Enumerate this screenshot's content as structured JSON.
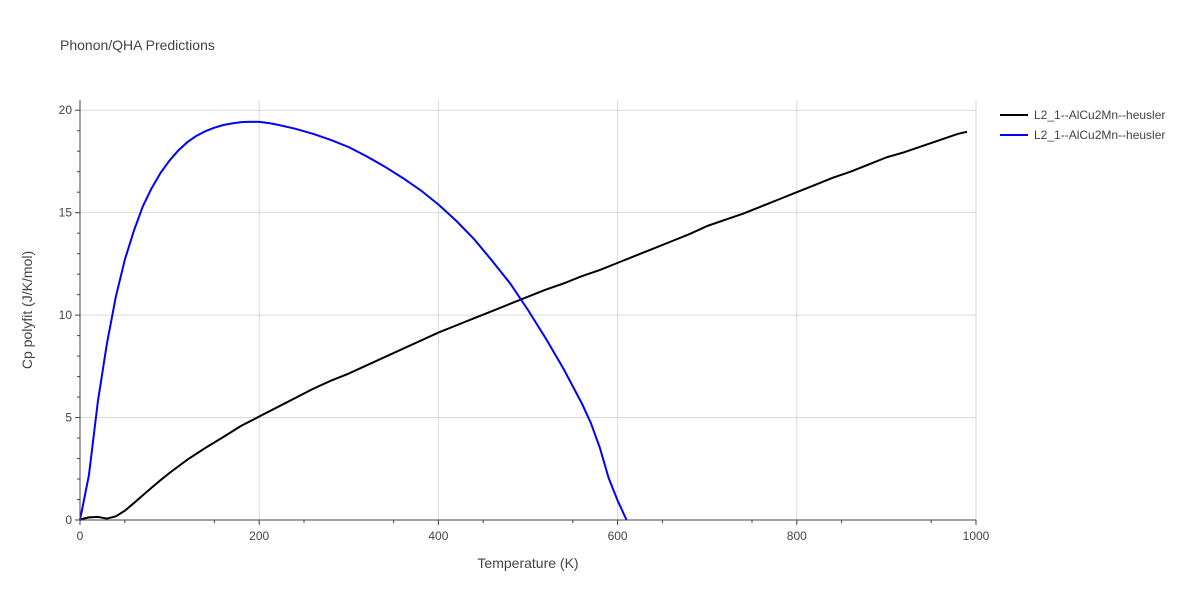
{
  "chart_data": {
    "type": "line",
    "title": "Phonon/QHA Predictions",
    "xlabel": "Temperature (K)",
    "ylabel": "Cp polyfit (J/K/mol)",
    "xlim": [
      0,
      1000
    ],
    "ylim": [
      0,
      20.5
    ],
    "xticks": [
      0,
      200,
      400,
      600,
      800,
      1000
    ],
    "yticks": [
      0,
      5,
      10,
      15,
      20
    ],
    "xtick_labels": [
      "0",
      "200",
      "400",
      "600",
      "800",
      "1000"
    ],
    "ytick_labels": [
      "0",
      "5",
      "10",
      "15",
      "20"
    ],
    "grid": true,
    "legend_position": "top-right",
    "series": [
      {
        "name": "L2_1--AlCu2Mn--heusler",
        "color": "#000000",
        "x": [
          0,
          5,
          10,
          20,
          30,
          40,
          50,
          60,
          70,
          80,
          90,
          100,
          120,
          140,
          160,
          180,
          200,
          220,
          240,
          260,
          280,
          300,
          320,
          340,
          360,
          380,
          400,
          420,
          440,
          460,
          480,
          500,
          520,
          540,
          560,
          580,
          600,
          620,
          640,
          660,
          680,
          700,
          720,
          740,
          760,
          780,
          800,
          820,
          840,
          860,
          880,
          900,
          920,
          940,
          960,
          980,
          990
        ],
        "y": [
          0,
          0.08,
          0.13,
          0.15,
          0.07,
          0.18,
          0.45,
          0.82,
          1.2,
          1.58,
          1.95,
          2.3,
          2.95,
          3.52,
          4.05,
          4.6,
          5.05,
          5.5,
          5.95,
          6.4,
          6.8,
          7.15,
          7.55,
          7.95,
          8.35,
          8.75,
          9.15,
          9.5,
          9.85,
          10.2,
          10.55,
          10.9,
          11.25,
          11.55,
          11.9,
          12.2,
          12.55,
          12.9,
          13.25,
          13.6,
          13.95,
          14.35,
          14.65,
          14.95,
          15.3,
          15.65,
          16.0,
          16.35,
          16.7,
          17.0,
          17.35,
          17.7,
          17.95,
          18.25,
          18.55,
          18.85,
          18.95
        ]
      },
      {
        "name": "L2_1--AlCu2Mn--heusler",
        "color": "#0000ff",
        "x": [
          0,
          10,
          20,
          30,
          40,
          50,
          60,
          70,
          80,
          90,
          100,
          110,
          120,
          130,
          140,
          150,
          160,
          170,
          180,
          190,
          200,
          210,
          220,
          240,
          260,
          280,
          300,
          320,
          340,
          360,
          380,
          400,
          420,
          440,
          460,
          480,
          500,
          520,
          540,
          560,
          570,
          580,
          590,
          600,
          610
        ],
        "y": [
          0,
          2.2,
          5.8,
          8.6,
          10.9,
          12.7,
          14.1,
          15.3,
          16.2,
          16.95,
          17.55,
          18.05,
          18.45,
          18.75,
          18.98,
          19.15,
          19.28,
          19.36,
          19.42,
          19.44,
          19.43,
          19.38,
          19.3,
          19.1,
          18.85,
          18.55,
          18.2,
          17.75,
          17.25,
          16.7,
          16.1,
          15.4,
          14.6,
          13.7,
          12.65,
          11.55,
          10.25,
          8.85,
          7.35,
          5.7,
          4.75,
          3.55,
          2.05,
          0.95,
          0
        ]
      }
    ]
  }
}
